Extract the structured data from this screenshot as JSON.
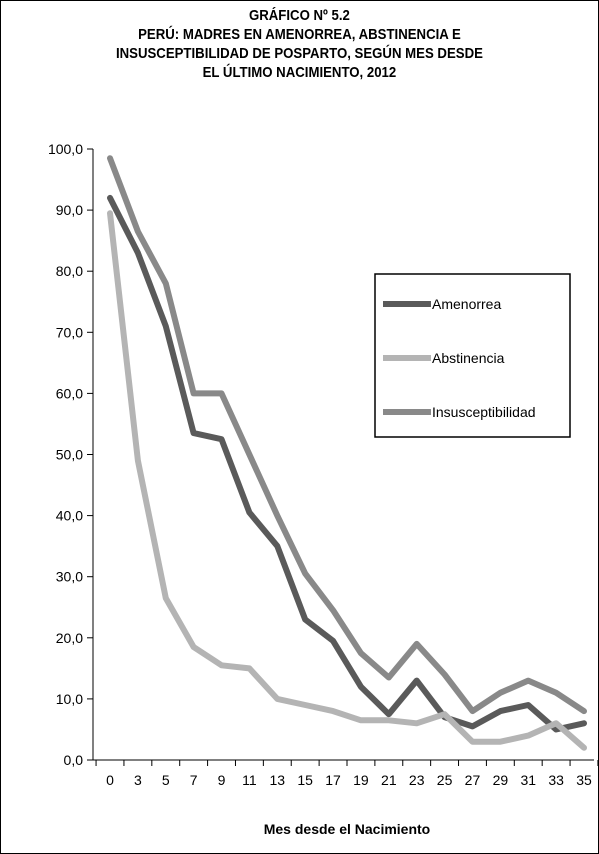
{
  "chart_data": {
    "type": "line",
    "title_lines": [
      "GRÁFICO Nº 5.2",
      "PERÚ: MADRES EN AMENORREA, ABSTINENCIA E",
      "INSUSCEPTIBILIDAD DE POSPARTO, SEGÚN MES DESDE",
      "EL ÚLTIMO NACIMIENTO, 2012"
    ],
    "xlabel": "Mes desde el Nacimiento",
    "ylabel": "",
    "ylim": [
      0,
      100
    ],
    "yticks": [
      "0,0",
      "10,0",
      "20,0",
      "30,0",
      "40,0",
      "50,0",
      "60,0",
      "70,0",
      "80,0",
      "90,0",
      "100,0"
    ],
    "x": [
      "0",
      "3",
      "5",
      "7",
      "9",
      "11",
      "13",
      "15",
      "17",
      "19",
      "21",
      "23",
      "25",
      "27",
      "29",
      "31",
      "33",
      "35"
    ],
    "legend_position": "right-center",
    "grid": false,
    "series": [
      {
        "name": "Amenorrea",
        "color": "#5a5a5a",
        "values": [
          92.0,
          83.0,
          71.0,
          53.5,
          52.5,
          40.5,
          35.0,
          23.0,
          19.5,
          12.0,
          7.5,
          13.0,
          7.0,
          5.5,
          8.0,
          9.0,
          5.0,
          6.0
        ]
      },
      {
        "name": "Abstinencia",
        "color": "#b4b4b4",
        "values": [
          89.5,
          49.0,
          26.5,
          18.5,
          15.5,
          15.0,
          10.0,
          9.0,
          8.0,
          6.5,
          6.5,
          6.0,
          7.5,
          3.0,
          3.0,
          4.0,
          6.0,
          2.0
        ]
      },
      {
        "name": "Insusceptibilidad",
        "color": "#898989",
        "values": [
          98.5,
          86.5,
          78.0,
          60.0,
          60.0,
          50.0,
          40.0,
          30.5,
          24.5,
          17.5,
          13.5,
          19.0,
          14.0,
          8.0,
          11.0,
          13.0,
          11.0,
          8.0
        ]
      }
    ]
  }
}
